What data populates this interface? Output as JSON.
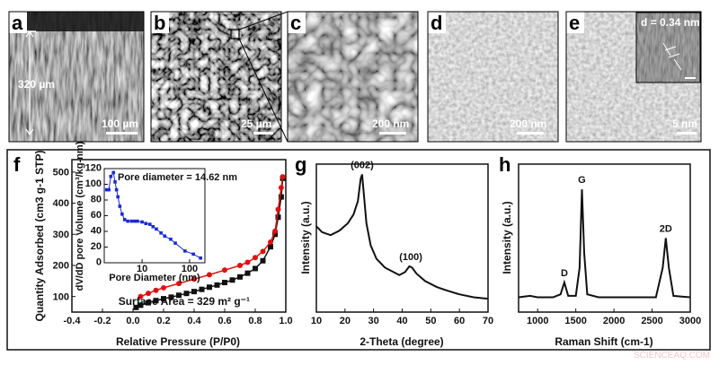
{
  "panels_top": [
    {
      "label": "a",
      "scale_bar": "100 µm",
      "annotation": "320 µm",
      "kind": "SEM cross-section"
    },
    {
      "label": "b",
      "scale_bar": "25 µm"
    },
    {
      "label": "c",
      "scale_bar": "200 nm"
    },
    {
      "label": "d",
      "scale_bar": "200 nm"
    },
    {
      "label": "e",
      "scale_bar": "5 nm",
      "inset_text": "d = 0.34 nm"
    }
  ],
  "watermark": "SCIENCEAQ.COM",
  "chart_data": [
    {
      "panel": "f",
      "type": "line",
      "xlabel": "Relative Pressure (P/P0)",
      "ylabel": "Quantity Adsorbed (cm3 g-1 STP)",
      "xlim": [
        -0.4,
        1.0
      ],
      "ylim": [
        50,
        540
      ],
      "xticks": [
        "-0.4",
        "-0.2",
        "0.0",
        "0.2",
        "0.4",
        "0.6",
        "0.8",
        "1.0"
      ],
      "yticks": [
        "100",
        "200",
        "300",
        "400",
        "500"
      ],
      "annotation": "Surface Area = 329 m² g⁻¹",
      "colors": {
        "black": "#111111",
        "red": "#e01010"
      },
      "series": [
        {
          "color": "#111111",
          "marker": "square",
          "x": [
            0.02,
            0.05,
            0.1,
            0.15,
            0.2,
            0.25,
            0.3,
            0.35,
            0.4,
            0.45,
            0.5,
            0.55,
            0.6,
            0.65,
            0.7,
            0.75,
            0.8,
            0.85,
            0.9,
            0.93,
            0.95,
            0.97,
            0.98
          ],
          "y": [
            65,
            72,
            80,
            87,
            93,
            98,
            104,
            110,
            116,
            123,
            130,
            137,
            145,
            153,
            163,
            175,
            190,
            215,
            260,
            300,
            355,
            420,
            480
          ]
        },
        {
          "color": "#e01010",
          "marker": "circle",
          "x": [
            0.05,
            0.1,
            0.15,
            0.2,
            0.3,
            0.4,
            0.5,
            0.6,
            0.7,
            0.75,
            0.8,
            0.85,
            0.9,
            0.93,
            0.95,
            0.97,
            0.98
          ],
          "y": [
            100,
            110,
            120,
            128,
            142,
            156,
            170,
            185,
            200,
            210,
            225,
            245,
            275,
            310,
            380,
            450,
            485
          ]
        }
      ],
      "inset": {
        "type": "line",
        "xlabel": "Pore Diameter (nm)",
        "ylabel": "dV/dD pore Volume (cm³/kg-nm)",
        "xscale": "log",
        "xlim": [
          1.6,
          210
        ],
        "ylim": [
          0,
          120
        ],
        "xticks": [
          "10",
          "100"
        ],
        "yticks": [
          "0",
          "20",
          "40",
          "60",
          "80",
          "100",
          "120"
        ],
        "annotation": "Pore diameter = 14.62 nm",
        "color": "#1a2ad0",
        "x": [
          1.8,
          2.0,
          2.2,
          2.5,
          2.7,
          2.9,
          3.1,
          3.4,
          3.8,
          4.3,
          5,
          6,
          7,
          8,
          10,
          12,
          14.6,
          17,
          20,
          25,
          30,
          40,
          50,
          80,
          120,
          170
        ],
        "y": [
          93,
          93,
          110,
          115,
          103,
          93,
          84,
          72,
          62,
          55,
          53,
          53,
          53,
          53,
          52,
          50,
          49,
          46,
          43,
          38,
          34,
          30,
          25,
          15,
          11,
          6
        ]
      }
    },
    {
      "panel": "g",
      "type": "line",
      "xlabel": "2-Theta (degree)",
      "ylabel": "Intensity (a.u.)",
      "xlim": [
        10,
        70
      ],
      "ylim": [
        0,
        1
      ],
      "xticks": [
        "10",
        "20",
        "30",
        "40",
        "50",
        "60",
        "70"
      ],
      "peaks": [
        {
          "label": "(002)",
          "x": 26,
          "y": 0.93
        },
        {
          "label": "(100)",
          "x": 43,
          "y": 0.31
        }
      ],
      "x": [
        10,
        12,
        15,
        18,
        21,
        23,
        24.5,
        25.5,
        26,
        26.5,
        27.5,
        29,
        31,
        34,
        37,
        39,
        41,
        42.5,
        43.5,
        45,
        48,
        52,
        55,
        60,
        65,
        70
      ],
      "y": [
        0.58,
        0.54,
        0.52,
        0.55,
        0.6,
        0.66,
        0.75,
        0.9,
        0.93,
        0.82,
        0.6,
        0.45,
        0.36,
        0.3,
        0.27,
        0.25,
        0.27,
        0.31,
        0.3,
        0.26,
        0.21,
        0.17,
        0.15,
        0.12,
        0.1,
        0.09
      ]
    },
    {
      "panel": "h",
      "type": "line",
      "xlabel": "Raman Shift (cm-1)",
      "ylabel": "Intensity (a.u.)",
      "xlim": [
        750,
        3000
      ],
      "ylim": [
        0,
        1
      ],
      "xticks": [
        "1000",
        "1500",
        "2000",
        "2500",
        "3000"
      ],
      "peaks": [
        {
          "label": "D",
          "x": 1350,
          "y": 0.2
        },
        {
          "label": "G",
          "x": 1580,
          "y": 0.83
        },
        {
          "label": "2D",
          "x": 2680,
          "y": 0.5
        }
      ],
      "x": [
        750,
        900,
        1000,
        1200,
        1300,
        1350,
        1400,
        1500,
        1550,
        1580,
        1610,
        1650,
        1800,
        2300,
        2550,
        2640,
        2680,
        2720,
        2780,
        3000
      ],
      "y": [
        0.1,
        0.11,
        0.1,
        0.1,
        0.12,
        0.2,
        0.11,
        0.11,
        0.3,
        0.83,
        0.4,
        0.12,
        0.1,
        0.1,
        0.1,
        0.3,
        0.5,
        0.3,
        0.11,
        0.1
      ]
    }
  ]
}
